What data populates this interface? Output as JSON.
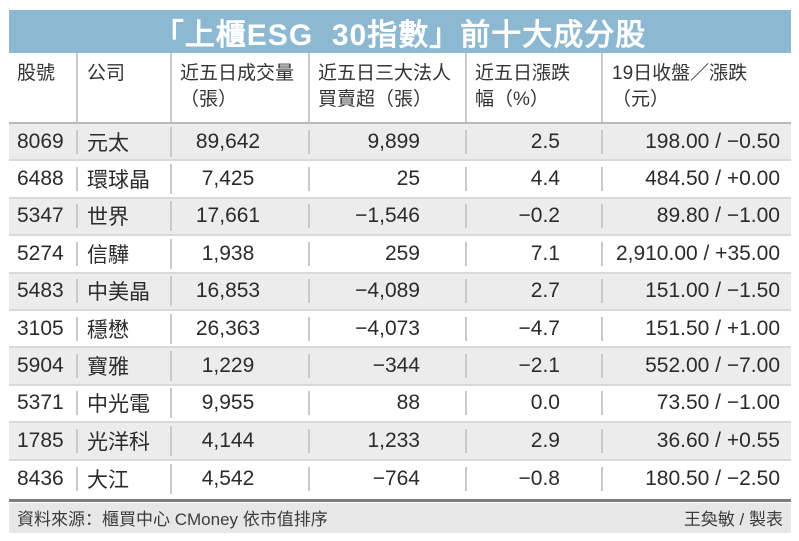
{
  "chart_data": {
    "type": "table",
    "title": "「上櫃ESG  30指數」前十大成分股",
    "columns": [
      "股號",
      "公司",
      "近五日成交量\n（張）",
      "近五日三大法人\n買賣超（張）",
      "近五日漲跌\n幅（%）",
      "19日收盤／漲跌\n（元）"
    ],
    "rows": [
      [
        "8069",
        "元太",
        "89,642",
        "9,899",
        "2.5",
        "198.00 / −0.50"
      ],
      [
        "6488",
        "環球晶",
        "7,425",
        "25",
        "4.4",
        "484.50 / +0.00"
      ],
      [
        "5347",
        "世界",
        "17,661",
        "−1,546",
        "−0.2",
        "89.80 / −1.00"
      ],
      [
        "5274",
        "信驊",
        "1,938",
        "259",
        "7.1",
        "2,910.00 / +35.00"
      ],
      [
        "5483",
        "中美晶",
        "16,853",
        "−4,089",
        "2.7",
        "151.00 / −1.50"
      ],
      [
        "3105",
        "穩懋",
        "26,363",
        "−4,073",
        "−4.7",
        "151.50 / +1.00"
      ],
      [
        "5904",
        "寶雅",
        "1,229",
        "−344",
        "−2.1",
        "552.00 / −7.00"
      ],
      [
        "5371",
        "中光電",
        "9,955",
        "88",
        "0.0",
        "73.50 / −1.00"
      ],
      [
        "1785",
        "光洋科",
        "4,144",
        "1,233",
        "2.9",
        "36.60 / +0.55"
      ],
      [
        "8436",
        "大江",
        "4,542",
        "−764",
        "−0.8",
        "180.50 / −2.50"
      ]
    ],
    "source": "資料來源：櫃買中心 CMoney 依市值排序",
    "credit": "王奐敏 / 製表"
  },
  "colors": {
    "banner": "#8cb8d2",
    "stripe": "#ececec",
    "footer_bg": "#e7e7e7",
    "header_rule": "#b9b9b9",
    "footer_rule": "#7e7e7e",
    "text": "#2b2b2b",
    "title_text": "#ffffff"
  }
}
